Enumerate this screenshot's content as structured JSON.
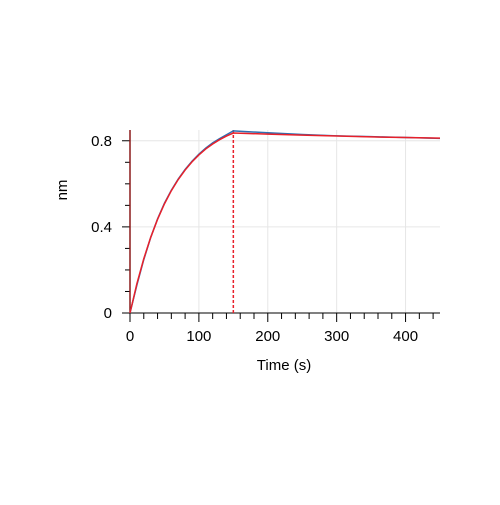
{
  "chart_data": {
    "type": "line",
    "xlabel": "Time (s)",
    "ylabel": "nm",
    "x": [
      0,
      10,
      20,
      30,
      40,
      50,
      60,
      70,
      80,
      90,
      100,
      110,
      120,
      130,
      140,
      150,
      200,
      250,
      300,
      350,
      400,
      450
    ],
    "series": [
      {
        "color": "#2f6fb0",
        "values": [
          0,
          0.13,
          0.248,
          0.35,
          0.437,
          0.51,
          0.57,
          0.622,
          0.667,
          0.705,
          0.738,
          0.766,
          0.79,
          0.81,
          0.828,
          0.846,
          0.837,
          0.829,
          0.823,
          0.819,
          0.815,
          0.811
        ]
      },
      {
        "color": "#e8202a",
        "values": [
          0,
          0.136,
          0.252,
          0.351,
          0.435,
          0.507,
          0.568,
          0.62,
          0.664,
          0.702,
          0.734,
          0.762,
          0.785,
          0.805,
          0.822,
          0.836,
          0.831,
          0.826,
          0.822,
          0.818,
          0.815,
          0.812
        ]
      }
    ],
    "reference_lines": [
      {
        "x": 0,
        "color": "#8b1a1a",
        "dashed": false
      },
      {
        "x": 150,
        "color": "#e8202a",
        "dashed": true
      }
    ],
    "xlim": [
      0,
      450
    ],
    "ylim": [
      0,
      0.85
    ],
    "xticks": [
      0,
      100,
      200,
      300,
      400
    ],
    "yticks": [
      0,
      0.4,
      0.8
    ],
    "xminorticks": [
      20,
      40,
      60,
      80,
      120,
      140,
      160,
      180,
      220,
      240,
      260,
      280,
      320,
      340,
      360,
      380,
      420,
      440
    ],
    "yminorticks": [
      0.1,
      0.2,
      0.3,
      0.5,
      0.6,
      0.7
    ],
    "grid": true
  }
}
